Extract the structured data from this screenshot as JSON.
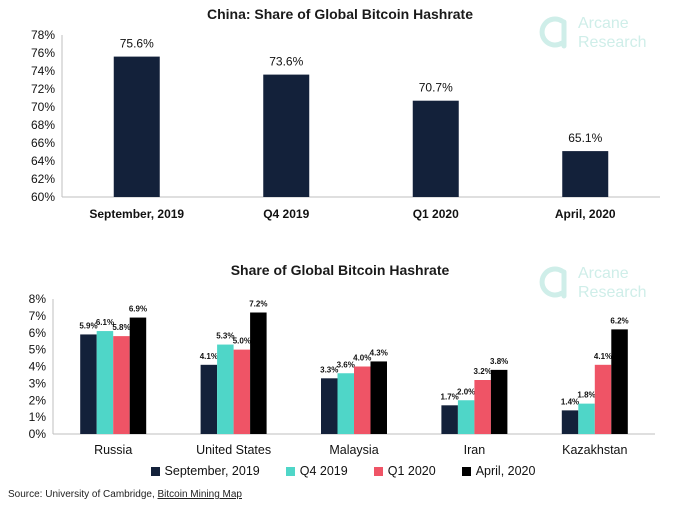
{
  "colors": {
    "september_2019": "#13213a",
    "q4_2019": "#4fd6c8",
    "q1_2020": "#ef5466",
    "april_2020": "#000000",
    "logo": "#cfeee9"
  },
  "logo": {
    "line1": "Arcane",
    "line2": "Research",
    "icon": "arcane-logo-icon"
  },
  "source": {
    "prefix": "Source: University of Cambridge, ",
    "link": "Bitcoin Mining Map"
  },
  "chart_data": [
    {
      "type": "bar",
      "title": "China: Share of Global Bitcoin Hashrate",
      "categories": [
        "September, 2019",
        "Q4 2019",
        "Q1 2020",
        "April, 2020"
      ],
      "values": [
        75.6,
        73.6,
        70.7,
        65.1
      ],
      "data_labels": [
        "75.6%",
        "73.6%",
        "70.7%",
        "65.1%"
      ],
      "ylim": [
        60,
        78
      ],
      "yticks": [
        "60%",
        "62%",
        "64%",
        "66%",
        "68%",
        "70%",
        "72%",
        "74%",
        "76%",
        "78%"
      ],
      "grid": false,
      "legend": "none"
    },
    {
      "type": "bar",
      "title": "Share of Global Bitcoin Hashrate",
      "categories": [
        "Russia",
        "United States",
        "Malaysia",
        "Iran",
        "Kazakhstan"
      ],
      "series": [
        {
          "name": "September, 2019",
          "values": [
            5.9,
            4.1,
            3.3,
            1.7,
            1.4
          ],
          "labels": [
            "5.9%",
            "4.1%",
            "3.3%",
            "1.7%",
            "1.4%"
          ]
        },
        {
          "name": "Q4 2019",
          "values": [
            6.1,
            5.3,
            3.6,
            2.0,
            1.8
          ],
          "labels": [
            "6.1%",
            "5.3%",
            "3.6%",
            "2.0%",
            "1.8%"
          ]
        },
        {
          "name": "Q1 2020",
          "values": [
            5.8,
            5.0,
            4.0,
            3.2,
            4.1
          ],
          "labels": [
            "5.8%",
            "5.0%",
            "4.0%",
            "3.2%",
            "4.1%"
          ]
        },
        {
          "name": "April, 2020",
          "values": [
            6.9,
            7.2,
            4.3,
            3.8,
            6.2
          ],
          "labels": [
            "6.9%",
            "7.2%",
            "4.3%",
            "3.8%",
            "6.2%"
          ]
        }
      ],
      "ylim": [
        0,
        8
      ],
      "yticks": [
        "0%",
        "1%",
        "2%",
        "3%",
        "4%",
        "5%",
        "6%",
        "7%",
        "8%"
      ],
      "grid": false,
      "legend": "bottom"
    }
  ]
}
